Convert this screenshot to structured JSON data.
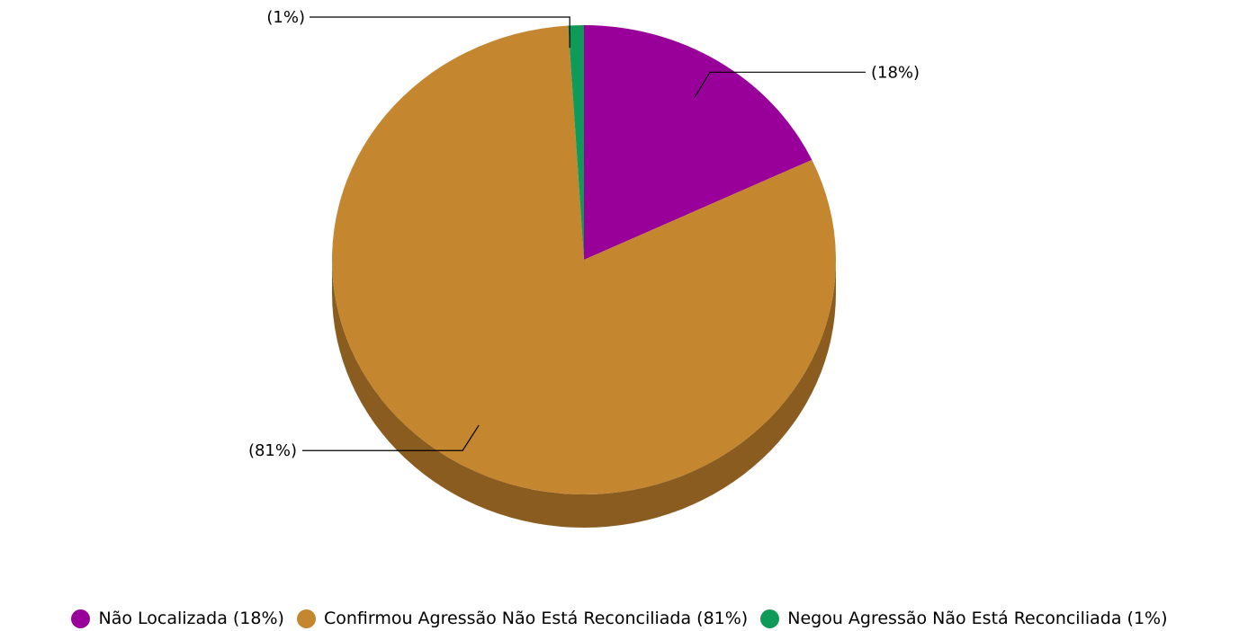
{
  "chart_data": {
    "type": "pie",
    "style": "3d",
    "title": "",
    "legend_position": "bottom",
    "slices": [
      {
        "name": "Não Localizada",
        "value": 18,
        "label": "(18%)",
        "legend": "Não Localizada (18%)",
        "color": "#990099",
        "side_color": "#6b006b"
      },
      {
        "name": "Confirmou Agressão  Não Está Reconciliada",
        "value": 81,
        "label": "(81%)",
        "legend": "Confirmou Agressão  Não Está Reconciliada (81%)",
        "color": "#c4862e",
        "side_color": "#8a5c20"
      },
      {
        "name": "Negou Agressão  Não Está Reconciliada",
        "value": 1,
        "label": "(1%)",
        "legend": "Negou Agressão  Não Está Reconciliada (1%)",
        "color": "#109a5a",
        "side_color": "#0b6b3f"
      }
    ]
  }
}
